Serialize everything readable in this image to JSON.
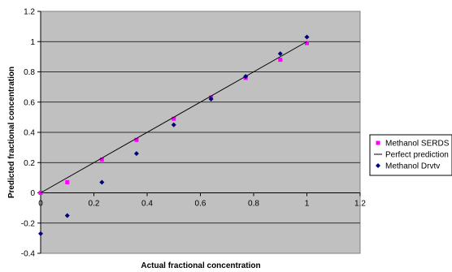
{
  "chart_data": {
    "type": "scatter",
    "xlabel": "Actual fractional concentration",
    "ylabel": "Predicted fractional concentration",
    "xlim": [
      0,
      1.2
    ],
    "ylim": [
      -0.4,
      1.2
    ],
    "x_ticks": [
      "0",
      "0.2",
      "0.4",
      "0.6",
      "0.8",
      "1",
      "1.2"
    ],
    "y_ticks": [
      "-0.4",
      "-0.2",
      "0",
      "0.2",
      "0.4",
      "0.6",
      "0.8",
      "1",
      "1.2"
    ],
    "grid": "horizontal",
    "legend_position": "right",
    "colors": {
      "plot_background": "#c0c0c0",
      "gridline": "#000000",
      "serds": "#ff00ff",
      "drvtv": "#000080",
      "perfect": "#000000"
    },
    "series": [
      {
        "name": "Methanol SERDS",
        "marker": "square",
        "x": [
          0,
          0.1,
          0.23,
          0.36,
          0.5,
          0.64,
          0.77,
          0.9,
          1.0
        ],
        "y": [
          0.0,
          0.07,
          0.22,
          0.35,
          0.49,
          0.63,
          0.76,
          0.88,
          0.99
        ]
      },
      {
        "name": "Perfect prediction",
        "marker": "line",
        "x": [
          0,
          1.0
        ],
        "y": [
          0,
          1.0
        ]
      },
      {
        "name": "Methanol Drvtv",
        "marker": "diamond",
        "x": [
          0,
          0.1,
          0.23,
          0.36,
          0.5,
          0.64,
          0.77,
          0.9,
          1.0
        ],
        "y": [
          -0.27,
          -0.15,
          0.07,
          0.26,
          0.45,
          0.62,
          0.77,
          0.92,
          1.03
        ]
      }
    ]
  }
}
